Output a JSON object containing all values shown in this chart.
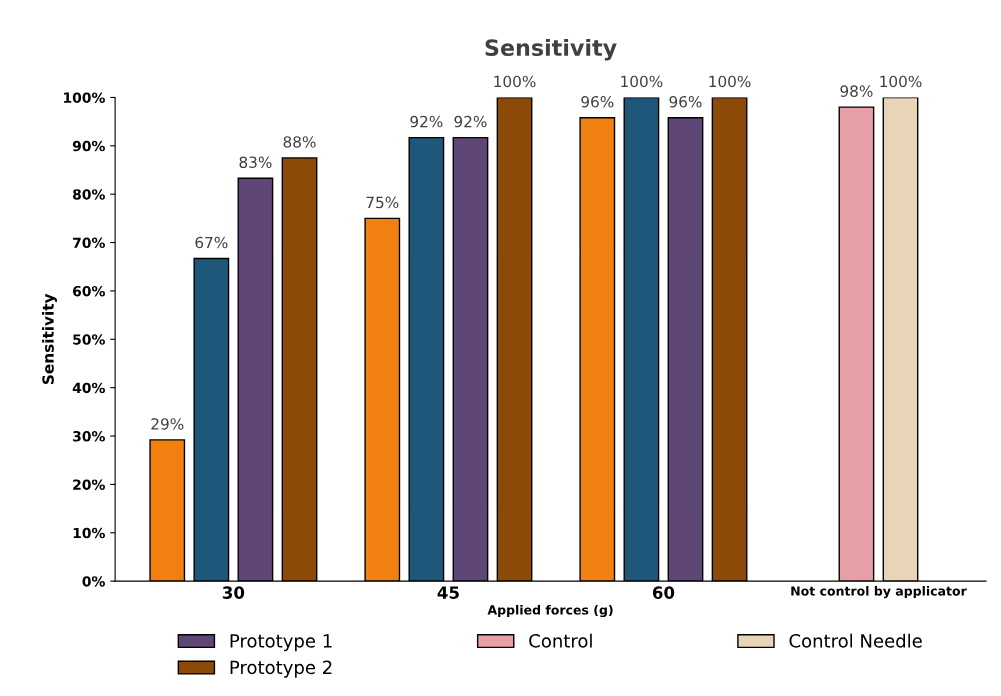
{
  "chart_data": {
    "type": "bar",
    "title": "Sensitivity",
    "xlabel": "Applied forces (g)",
    "ylabel": "Sensitivity",
    "categories": [
      "30",
      "45",
      "60",
      "Not control by applicator"
    ],
    "series": [
      {
        "color": "#f0800f",
        "values": [
          29.2,
          75,
          95.8,
          null
        ],
        "value_labels": [
          "29%",
          "75%",
          "96%",
          null
        ]
      },
      {
        "color": "#1f577a",
        "values": [
          66.7,
          91.7,
          100,
          null
        ],
        "value_labels": [
          "67%",
          "92%",
          "100%",
          null
        ]
      },
      {
        "name": "Prototype 1",
        "color": "#5e4777",
        "values": [
          83.3,
          91.7,
          95.8,
          null
        ],
        "value_labels": [
          "83%",
          "92%",
          "96%",
          null
        ]
      },
      {
        "name": "Prototype 2",
        "color": "#8b4a08",
        "values": [
          87.5,
          100,
          100,
          null
        ],
        "value_labels": [
          "88%",
          "100%",
          "100%",
          null
        ]
      },
      {
        "name": "Control",
        "color": "#e8a0a8",
        "values": [
          null,
          null,
          null,
          98
        ],
        "value_labels": [
          null,
          null,
          null,
          "98%"
        ]
      },
      {
        "name": "Control Needle",
        "color": "#e8d5b8",
        "values": [
          null,
          null,
          null,
          100
        ],
        "value_labels": [
          null,
          null,
          null,
          "100%"
        ]
      }
    ],
    "ylim": [
      0,
      100
    ],
    "yticks": [
      {
        "value": 0,
        "label": "0%"
      },
      {
        "value": 10,
        "label": "10%"
      },
      {
        "value": 20,
        "label": "20%"
      },
      {
        "value": 30,
        "label": "30%"
      },
      {
        "value": 40,
        "label": "40%"
      },
      {
        "value": 50,
        "label": "50%"
      },
      {
        "value": 60,
        "label": "60%"
      },
      {
        "value": 70,
        "label": "70%"
      },
      {
        "value": 80,
        "label": "80%"
      },
      {
        "value": 90,
        "label": "90%"
      },
      {
        "value": 100,
        "label": "100%"
      }
    ],
    "grid": false,
    "legend": "bottom"
  }
}
